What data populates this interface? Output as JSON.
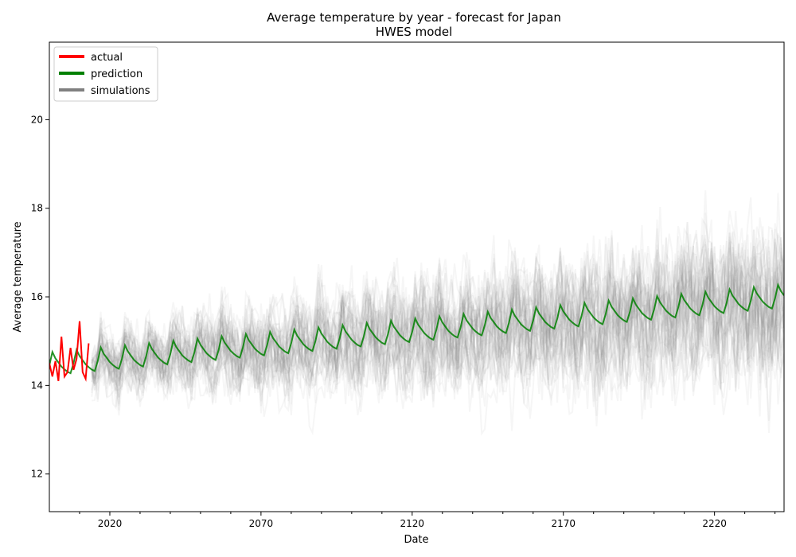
{
  "chart_data": {
    "type": "line",
    "title": "Average temperature by year - forecast for Japan",
    "subtitle": "HWES model",
    "xlabel": "Date",
    "ylabel": "Average temperature",
    "xlim": [
      2000,
      2243
    ],
    "ylim": [
      11.15,
      21.75
    ],
    "x_ticks": [
      2020,
      2070,
      2120,
      2170,
      2220
    ],
    "y_ticks": [
      12,
      14,
      16,
      18,
      20
    ],
    "grid": false,
    "legend_placement": "top-left",
    "legend": [
      {
        "label": "actual",
        "color": "#ff0000"
      },
      {
        "label": "prediction",
        "color": "#008000"
      },
      {
        "label": "simulations",
        "color": "#808080"
      }
    ],
    "series": [
      {
        "name": "actual",
        "color": "#ff0000",
        "x": [
          2000,
          2001,
          2002,
          2003,
          2004,
          2005,
          2006,
          2007,
          2008,
          2009,
          2010,
          2011,
          2012,
          2013
        ],
        "values": [
          14.5,
          14.2,
          14.55,
          14.1,
          15.1,
          14.2,
          14.3,
          14.85,
          14.35,
          14.6,
          15.45,
          14.3,
          14.15,
          14.95
        ]
      },
      {
        "name": "prediction",
        "color": "#008000",
        "seasonal_pattern": [
          0.0,
          0.3,
          0.15,
          0.05,
          -0.05,
          -0.12,
          -0.18,
          -0.22
        ],
        "trend_start": 14.45,
        "trend_per_year": 0.0063,
        "x_start": 2000,
        "x_end": 2243
      },
      {
        "name": "simulations",
        "color": "#808080",
        "x_start": 2014,
        "x_end": 2243,
        "count": 45,
        "opacity": 0.07,
        "spread_start": 0.45,
        "spread_end": 1.2
      }
    ]
  }
}
